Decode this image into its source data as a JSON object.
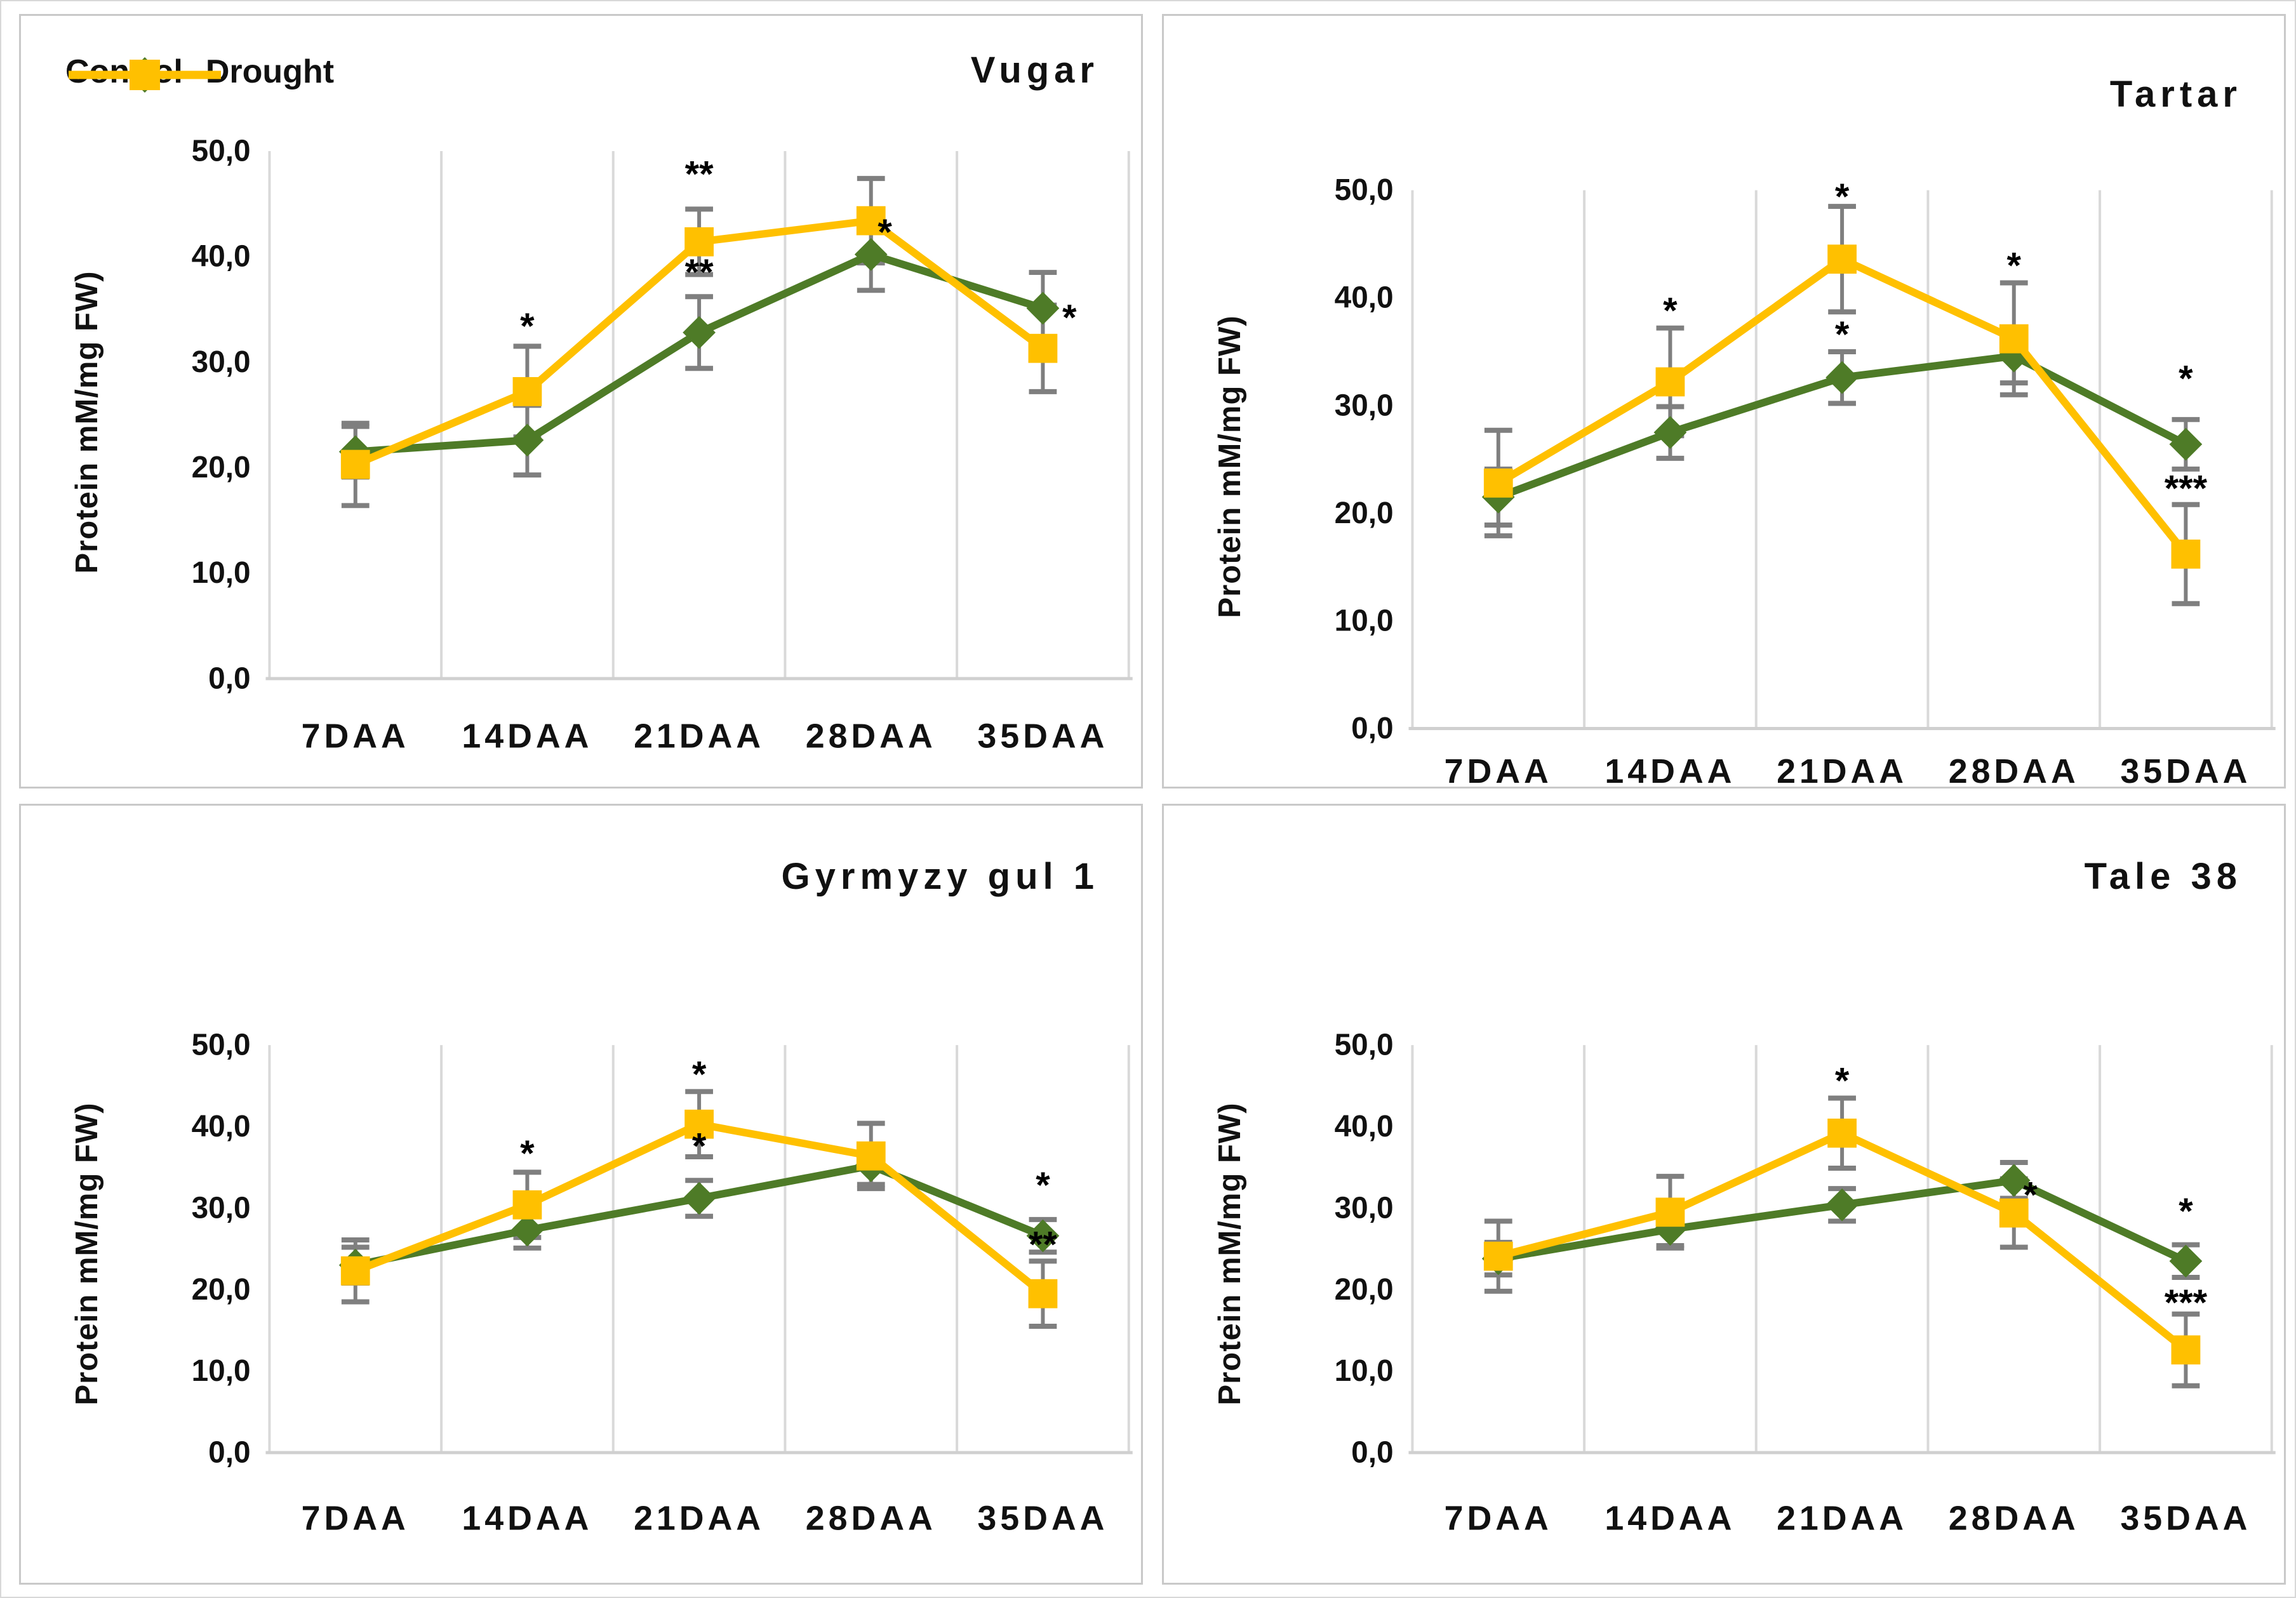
{
  "legend": {
    "control_label": "Control",
    "drought_label": "Drought"
  },
  "colors": {
    "control": "#4e7b27",
    "drought": "#ffc000",
    "error_bar": "#7f7f7f",
    "gridline": "#d9d9d9",
    "axis_line": "#d0d0d0",
    "text": "#111111",
    "panel_border": "#c9c9c9"
  },
  "axis": {
    "ylim": [
      0,
      50
    ],
    "ytick_values": [
      0,
      10,
      20,
      30,
      40,
      50
    ],
    "ytick_labels": [
      "0,0",
      "10,0",
      "20,0",
      "30,0",
      "40,0",
      "50,0"
    ]
  },
  "chart_data": [
    {
      "type": "line",
      "title": "Vugar",
      "ylabel": "Protein mM/mg  FW)",
      "xlabel": "",
      "categories": [
        "7DAA",
        "14DAA",
        "21DAA",
        "28DAA",
        "35DAA"
      ],
      "ylim": [
        0,
        50
      ],
      "grid": "vertical-only",
      "legend_position": "top-left",
      "show_legend": true,
      "series": [
        {
          "name": "Control",
          "color_key": "control",
          "marker": "diamond",
          "values": [
            21.5,
            22.6,
            32.8,
            40.2,
            35.1
          ],
          "errors": [
            2.4,
            3.3,
            3.4,
            3.4,
            3.4
          ]
        },
        {
          "name": "Drought",
          "color_key": "drought",
          "marker": "square",
          "values": [
            20.3,
            27.2,
            41.4,
            43.4,
            31.3
          ],
          "errors": [
            3.9,
            4.3,
            3.1,
            4.0,
            4.1
          ]
        }
      ],
      "annotations": [
        {
          "series": 1,
          "x": 1,
          "y": 33.4,
          "dx": 0,
          "text": "*"
        },
        {
          "series": 1,
          "x": 2,
          "y": 47.8,
          "dx": 0,
          "text": "**"
        },
        {
          "series": 0,
          "x": 2,
          "y": 38.5,
          "dx": 0,
          "text": "**"
        },
        {
          "series": 0,
          "x": 3,
          "y": 42.3,
          "dx": 22,
          "text": "*"
        },
        {
          "series": 0,
          "x": 4,
          "y": 34.2,
          "dx": 42,
          "text": "*"
        }
      ]
    },
    {
      "type": "line",
      "title": "Tartar",
      "ylabel": "Protein mM/mg  FW)",
      "xlabel": "",
      "categories": [
        "7DAA",
        "14DAA",
        "21DAA",
        "28DAA",
        "35DAA"
      ],
      "ylim": [
        0,
        50
      ],
      "grid": "vertical-only",
      "legend_position": "none",
      "show_legend": false,
      "series": [
        {
          "name": "Control",
          "color_key": "control",
          "marker": "diamond",
          "values": [
            21.5,
            27.5,
            32.6,
            34.6,
            26.4
          ],
          "errors": [
            2.6,
            2.4,
            2.4,
            2.5,
            2.3
          ]
        },
        {
          "name": "Drought",
          "color_key": "drought",
          "marker": "square",
          "values": [
            22.8,
            32.2,
            43.6,
            36.2,
            16.2
          ],
          "errors": [
            4.9,
            5.0,
            4.9,
            5.2,
            4.6
          ]
        }
      ],
      "annotations": [
        {
          "series": 1,
          "x": 1,
          "y": 38.8,
          "dx": 0,
          "text": "*"
        },
        {
          "series": 1,
          "x": 2,
          "y": 49.4,
          "dx": 0,
          "text": "*"
        },
        {
          "series": 0,
          "x": 2,
          "y": 36.6,
          "dx": 0,
          "text": "*"
        },
        {
          "series": 1,
          "x": 3,
          "y": 43.0,
          "dx": 0,
          "text": "*"
        },
        {
          "series": 0,
          "x": 4,
          "y": 32.5,
          "dx": 0,
          "text": "*"
        },
        {
          "series": 1,
          "x": 4,
          "y": 22.3,
          "dx": 0,
          "text": "***"
        }
      ]
    },
    {
      "type": "line",
      "title": "Gyrmyzy gul 1",
      "ylabel": "Protein mM/mg FW)",
      "xlabel": "",
      "categories": [
        "7DAA",
        "14DAA",
        "21DAA",
        "28DAA",
        "35DAA"
      ],
      "ylim": [
        0,
        50
      ],
      "grid": "vertical-only",
      "legend_position": "none",
      "show_legend": false,
      "series": [
        {
          "name": "Control",
          "color_key": "control",
          "marker": "diamond",
          "values": [
            23.0,
            27.3,
            31.2,
            35.2,
            26.6
          ],
          "errors": [
            2.2,
            2.2,
            2.2,
            2.3,
            2.0
          ]
        },
        {
          "name": "Drought",
          "color_key": "drought",
          "marker": "square",
          "values": [
            22.3,
            30.4,
            40.3,
            36.4,
            19.5
          ],
          "errors": [
            3.8,
            4.0,
            4.0,
            4.0,
            4.0
          ]
        }
      ],
      "annotations": [
        {
          "series": 1,
          "x": 1,
          "y": 36.7,
          "dx": 0,
          "text": "*"
        },
        {
          "series": 1,
          "x": 2,
          "y": 46.4,
          "dx": 0,
          "text": "*"
        },
        {
          "series": 0,
          "x": 2,
          "y": 37.6,
          "dx": 0,
          "text": "*"
        },
        {
          "series": 0,
          "x": 4,
          "y": 32.8,
          "dx": 0,
          "text": "*"
        },
        {
          "series": 1,
          "x": 4,
          "y": 25.5,
          "dx": 0,
          "text": "**"
        }
      ]
    },
    {
      "type": "line",
      "title": "Tale 38",
      "ylabel": "Protein mM/mg FW)",
      "xlabel": "",
      "categories": [
        "7DAA",
        "14DAA",
        "21DAA",
        "28DAA",
        "35DAA"
      ],
      "ylim": [
        0,
        50
      ],
      "grid": "vertical-only",
      "legend_position": "none",
      "show_legend": false,
      "series": [
        {
          "name": "Control",
          "color_key": "control",
          "marker": "diamond",
          "values": [
            23.8,
            27.4,
            30.4,
            33.4,
            23.5
          ],
          "errors": [
            2.0,
            2.0,
            2.0,
            2.2,
            2.0
          ]
        },
        {
          "name": "Drought",
          "color_key": "drought",
          "marker": "square",
          "values": [
            24.1,
            29.5,
            39.2,
            29.4,
            12.6
          ],
          "errors": [
            4.3,
            4.4,
            4.3,
            4.2,
            4.4
          ]
        }
      ],
      "annotations": [
        {
          "series": 1,
          "x": 2,
          "y": 45.6,
          "dx": 0,
          "text": "*"
        },
        {
          "series": 1,
          "x": 3,
          "y": 31.6,
          "dx": 26,
          "text": "*"
        },
        {
          "series": 0,
          "x": 4,
          "y": 29.6,
          "dx": 0,
          "text": "*"
        },
        {
          "series": 1,
          "x": 4,
          "y": 18.4,
          "dx": 0,
          "text": "***"
        }
      ]
    }
  ]
}
